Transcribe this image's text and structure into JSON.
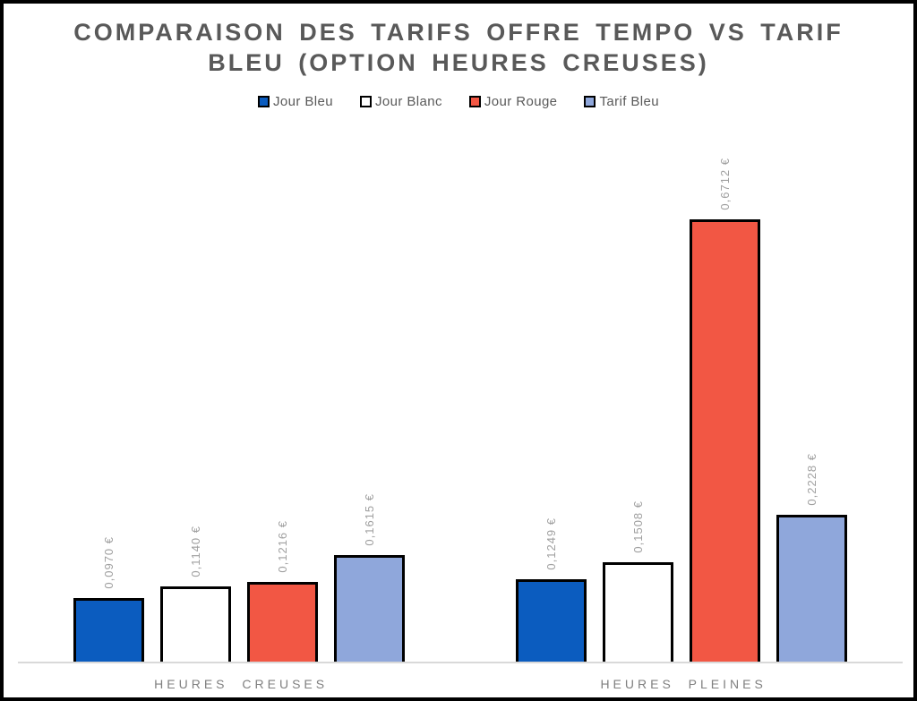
{
  "chart_data": {
    "type": "bar",
    "title": "COMPARAISON DES TARIFS OFFRE TEMPO VS TARIF BLEU (OPTION HEURES CREUSES)",
    "categories": [
      "HEURES CREUSES",
      "HEURES PLEINES"
    ],
    "series": [
      {
        "name": "Jour Bleu",
        "color": "#0b5cbf",
        "values": [
          0.097,
          0.1249
        ],
        "labels": [
          "0,0970 €",
          "0,1249 €"
        ]
      },
      {
        "name": "Jour Blanc",
        "color": "#ffffff",
        "values": [
          0.114,
          0.1508
        ],
        "labels": [
          "0,1140 €",
          "0,1508 €"
        ]
      },
      {
        "name": "Jour Rouge",
        "color": "#f25744",
        "values": [
          0.1216,
          0.6712
        ],
        "labels": [
          "0,1216 €",
          "0,6712 €"
        ]
      },
      {
        "name": "Tarif Bleu",
        "color": "#8fa7db",
        "values": [
          0.1615,
          0.2228
        ],
        "labels": [
          "0,1615 €",
          "0,2228 €"
        ]
      }
    ],
    "unit": "€",
    "xlabel": "",
    "ylabel": "",
    "ylim": [
      0,
      0.6712
    ],
    "grid": false,
    "legend_position": "top",
    "value_label_rotation": "vertical",
    "colors": {
      "title_text": "#595959",
      "legend_text": "#595959",
      "value_label_text": "#a0a0a0",
      "category_text": "#808080",
      "axis_line": "#d9d9d9",
      "bar_border": "#000000",
      "frame_border": "#000000",
      "background": "#ffffff"
    }
  }
}
